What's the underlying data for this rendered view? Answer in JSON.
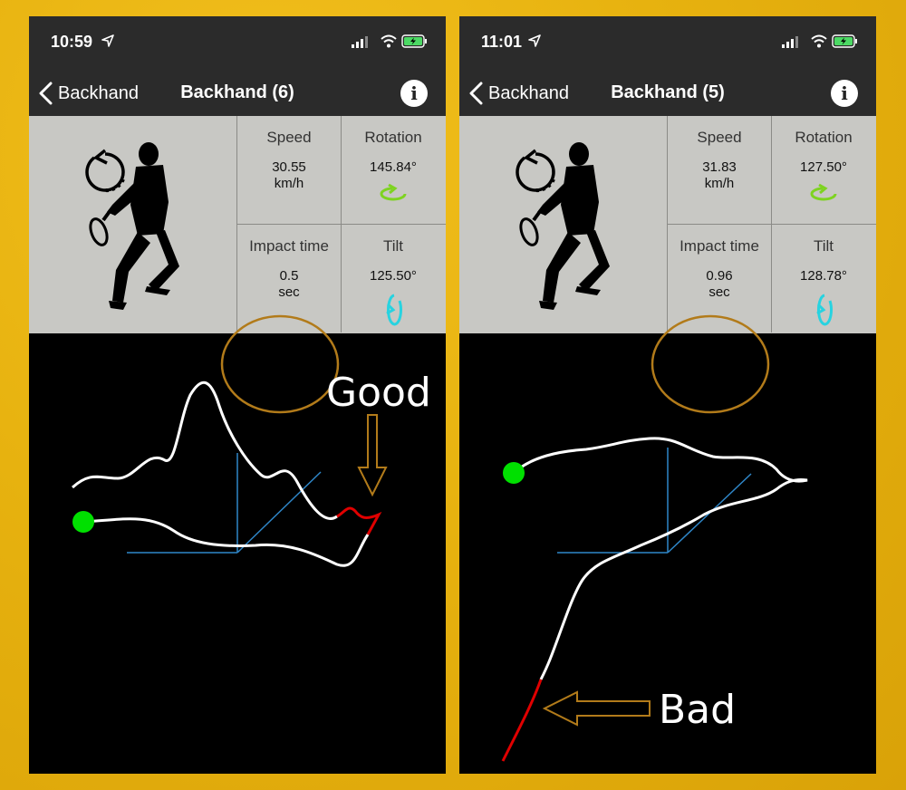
{
  "colors": {
    "background": "#e9b412",
    "panel": "#c8c8c4",
    "bar": "#2b2b2b",
    "highlight_ring": "#b27b1a",
    "rotation_icon": "#7ed321",
    "tilt_icon": "#27d3e0",
    "start_dot": "#00e000",
    "trace": "#ffffff",
    "trace_bad": "#e00000",
    "axes": "#2f87c9"
  },
  "screens": [
    {
      "status": {
        "time": "10:59"
      },
      "nav": {
        "back_label": "Backhand",
        "title": "Backhand (6)",
        "info_label": "i"
      },
      "stats": {
        "speed": {
          "label": "Speed",
          "value": "30.55",
          "unit": "km/h"
        },
        "rotation": {
          "label": "Rotation",
          "value": "145.84°"
        },
        "impact": {
          "label": "Impact time",
          "value": "0.5",
          "unit": "sec"
        },
        "tilt": {
          "label": "Tilt",
          "value": "125.50°"
        }
      },
      "annotation": {
        "label": "Good",
        "icon": "down-arrow-icon"
      }
    },
    {
      "status": {
        "time": "11:01"
      },
      "nav": {
        "back_label": "Backhand",
        "title": "Backhand (5)",
        "info_label": "i"
      },
      "stats": {
        "speed": {
          "label": "Speed",
          "value": "31.83",
          "unit": "km/h"
        },
        "rotation": {
          "label": "Rotation",
          "value": "127.50°"
        },
        "impact": {
          "label": "Impact time",
          "value": "0.96",
          "unit": "sec"
        },
        "tilt": {
          "label": "Tilt",
          "value": "128.78°"
        }
      },
      "annotation": {
        "label": "Bad",
        "icon": "left-arrow-icon"
      }
    }
  ]
}
